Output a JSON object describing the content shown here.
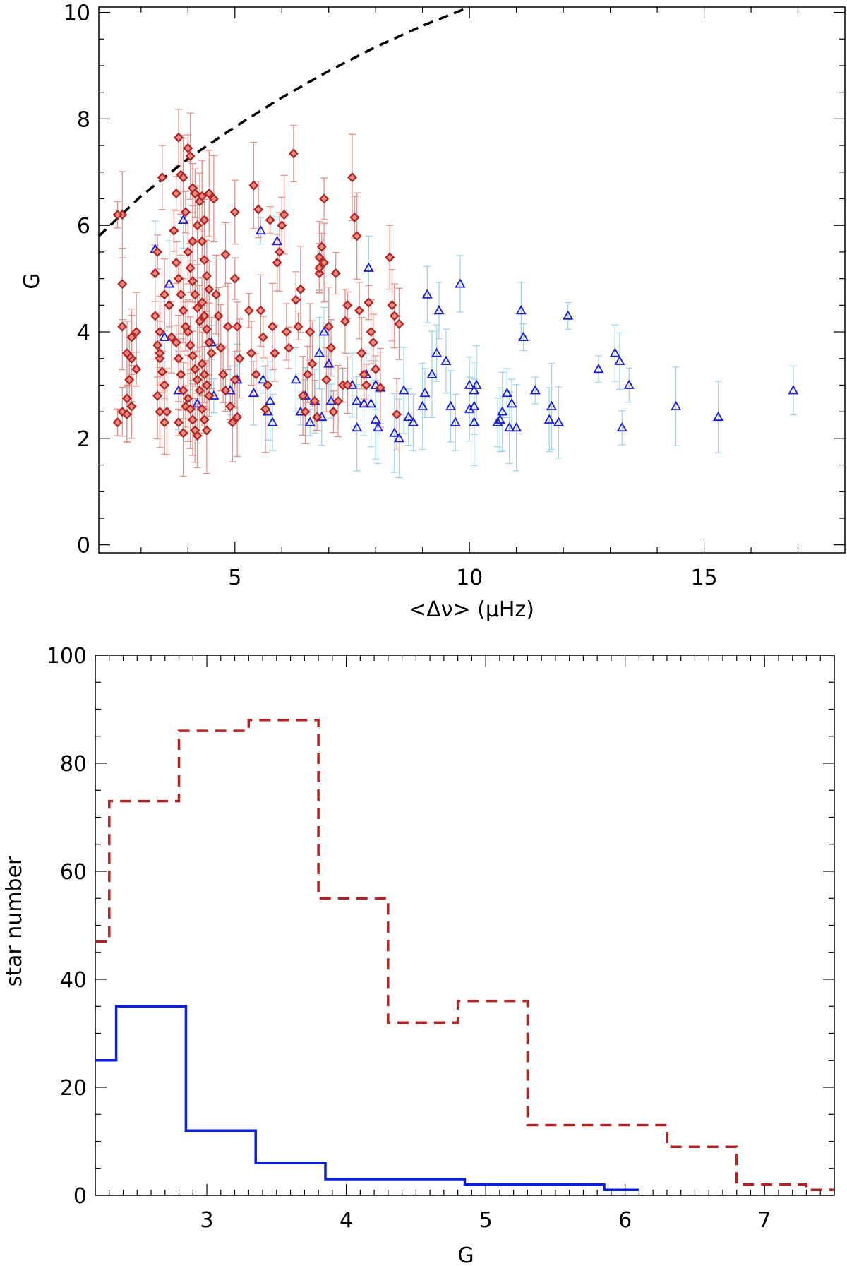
{
  "chart_data": [
    {
      "type": "scatter",
      "xlabel": "<Δν> (μHz)",
      "ylabel": "G",
      "xlim": [
        2.1,
        18.0
      ],
      "ylim": [
        -0.15,
        10.1
      ],
      "xticks": [
        "5",
        "10",
        "15"
      ],
      "yticks": [
        "0",
        "2",
        "4",
        "6",
        "8",
        "10"
      ],
      "colors": {
        "red_marker": "#b22222",
        "red_error": "#e8908a",
        "blue_marker": "#1a1ad6",
        "blue_error": "#9fd6ee",
        "curve": "#000000"
      },
      "curve": {
        "style": "dashed",
        "x": [
          2.1,
          3.0,
          4.0,
          5.0,
          6.0,
          7.0,
          8.0,
          9.0,
          10.0
        ],
        "y": [
          5.8,
          6.55,
          7.25,
          7.85,
          8.4,
          8.9,
          9.35,
          9.75,
          10.1
        ]
      },
      "series": [
        {
          "marker": "diamond",
          "points": [
            [
              2.6,
              6.2
            ],
            [
              2.5,
              6.2
            ],
            [
              2.6,
              4.9
            ],
            [
              2.6,
              4.1
            ],
            [
              2.5,
              2.3
            ],
            [
              2.6,
              2.5
            ],
            [
              2.7,
              2.45
            ],
            [
              2.7,
              2.75
            ],
            [
              2.75,
              3.1
            ],
            [
              2.8,
              3.5
            ],
            [
              2.8,
              3.9
            ],
            [
              2.75,
              3.55
            ],
            [
              2.9,
              4.0
            ],
            [
              2.9,
              3.3
            ],
            [
              2.7,
              3.6
            ],
            [
              2.8,
              2.6
            ],
            [
              3.3,
              5.1
            ],
            [
              3.45,
              6.9
            ],
            [
              3.35,
              5.5
            ],
            [
              3.3,
              4.3
            ],
            [
              3.4,
              4.0
            ],
            [
              3.35,
              3.75
            ],
            [
              3.4,
              3.5
            ],
            [
              3.45,
              3.25
            ],
            [
              3.5,
              3.0
            ],
            [
              3.35,
              2.8
            ],
            [
              3.4,
              2.5
            ],
            [
              3.5,
              2.3
            ],
            [
              3.55,
              2.5
            ],
            [
              3.6,
              4.5
            ],
            [
              3.65,
              3.9
            ],
            [
              3.5,
              4.7
            ],
            [
              3.4,
              3.6
            ],
            [
              3.7,
              5.9
            ],
            [
              3.75,
              6.6
            ],
            [
              3.8,
              7.65
            ],
            [
              3.85,
              6.95
            ],
            [
              3.9,
              6.9
            ],
            [
              3.95,
              6.25
            ],
            [
              3.75,
              5.3
            ],
            [
              3.8,
              5.0
            ],
            [
              3.85,
              4.7
            ],
            [
              3.9,
              4.4
            ],
            [
              3.95,
              4.1
            ],
            [
              3.75,
              3.8
            ],
            [
              3.8,
              3.5
            ],
            [
              3.85,
              3.2
            ],
            [
              3.9,
              2.9
            ],
            [
              3.95,
              2.6
            ],
            [
              3.8,
              2.3
            ],
            [
              3.9,
              2.1
            ],
            [
              4.0,
              7.45
            ],
            [
              4.05,
              7.3
            ],
            [
              4.1,
              6.7
            ],
            [
              4.15,
              6.6
            ],
            [
              4.2,
              6.0
            ],
            [
              4.25,
              6.45
            ],
            [
              4.1,
              5.7
            ],
            [
              4.0,
              5.5
            ],
            [
              4.05,
              5.2
            ],
            [
              4.1,
              4.95
            ],
            [
              4.15,
              4.7
            ],
            [
              4.2,
              4.45
            ],
            [
              4.25,
              4.2
            ],
            [
              4.0,
              4.0
            ],
            [
              4.05,
              3.75
            ],
            [
              4.1,
              3.55
            ],
            [
              4.15,
              3.3
            ],
            [
              4.2,
              3.1
            ],
            [
              4.25,
              2.9
            ],
            [
              4.0,
              2.75
            ],
            [
              4.05,
              2.55
            ],
            [
              4.1,
              2.35
            ],
            [
              4.15,
              2.15
            ],
            [
              4.2,
              2.05
            ],
            [
              4.3,
              6.55
            ],
            [
              4.35,
              6.1
            ],
            [
              4.45,
              6.6
            ],
            [
              4.55,
              6.5
            ],
            [
              4.3,
              5.7
            ],
            [
              4.35,
              5.35
            ],
            [
              4.4,
              5.05
            ],
            [
              4.45,
              4.8
            ],
            [
              4.3,
              4.55
            ],
            [
              4.35,
              4.3
            ],
            [
              4.4,
              4.05
            ],
            [
              4.45,
              3.8
            ],
            [
              4.5,
              3.6
            ],
            [
              4.3,
              3.4
            ],
            [
              4.35,
              3.2
            ],
            [
              4.4,
              3.0
            ],
            [
              4.45,
              2.8
            ],
            [
              4.3,
              2.55
            ],
            [
              4.35,
              2.35
            ],
            [
              4.4,
              2.15
            ],
            [
              4.6,
              4.7
            ],
            [
              4.65,
              4.3
            ],
            [
              4.7,
              3.7
            ],
            [
              4.75,
              3.2
            ],
            [
              4.8,
              2.9
            ],
            [
              4.9,
              2.6
            ],
            [
              4.95,
              2.3
            ],
            [
              4.85,
              4.1
            ],
            [
              4.8,
              5.45
            ],
            [
              5.0,
              6.25
            ],
            [
              5.0,
              5.0
            ],
            [
              5.05,
              4.1
            ],
            [
              5.1,
              3.5
            ],
            [
              5.0,
              3.1
            ],
            [
              5.05,
              2.4
            ],
            [
              5.3,
              4.4
            ],
            [
              5.4,
              6.75
            ],
            [
              5.5,
              6.3
            ],
            [
              5.35,
              3.6
            ],
            [
              5.45,
              3.2
            ],
            [
              5.55,
              4.4
            ],
            [
              5.6,
              3.9
            ],
            [
              5.65,
              2.55
            ],
            [
              5.7,
              3.0
            ],
            [
              5.75,
              6.1
            ],
            [
              5.8,
              4.1
            ],
            [
              5.85,
              3.6
            ],
            [
              5.9,
              5.3
            ],
            [
              5.95,
              5.5
            ],
            [
              6.0,
              6.0
            ],
            [
              6.05,
              6.2
            ],
            [
              6.1,
              4.0
            ],
            [
              6.15,
              3.7
            ],
            [
              6.25,
              7.35
            ],
            [
              6.3,
              4.6
            ],
            [
              6.35,
              4.1
            ],
            [
              6.4,
              4.8
            ],
            [
              6.45,
              2.8
            ],
            [
              6.5,
              2.5
            ],
            [
              6.55,
              3.2
            ],
            [
              6.6,
              4.0
            ],
            [
              6.65,
              3.4
            ],
            [
              6.7,
              2.7
            ],
            [
              6.75,
              2.4
            ],
            [
              6.8,
              5.1
            ],
            [
              6.8,
              5.2
            ],
            [
              6.8,
              5.4
            ],
            [
              6.85,
              5.6
            ],
            [
              6.9,
              5.3
            ],
            [
              6.9,
              6.5
            ],
            [
              6.95,
              3.1
            ],
            [
              7.0,
              4.1
            ],
            [
              7.05,
              3.7
            ],
            [
              7.1,
              2.5
            ],
            [
              7.15,
              5.1
            ],
            [
              7.2,
              2.7
            ],
            [
              7.3,
              3.0
            ],
            [
              7.35,
              4.2
            ],
            [
              7.4,
              4.5
            ],
            [
              7.4,
              3.0
            ],
            [
              7.5,
              6.9
            ],
            [
              7.55,
              6.15
            ],
            [
              7.6,
              5.8
            ],
            [
              7.65,
              4.4
            ],
            [
              7.7,
              3.6
            ],
            [
              7.75,
              3.2
            ],
            [
              7.8,
              3.0
            ],
            [
              7.85,
              4.55
            ],
            [
              7.9,
              4.0
            ],
            [
              7.95,
              3.8
            ],
            [
              8.0,
              3.3
            ],
            [
              8.1,
              2.95
            ],
            [
              8.3,
              5.4
            ],
            [
              8.35,
              4.5
            ],
            [
              8.4,
              4.3
            ],
            [
              8.45,
              2.45
            ],
            [
              8.5,
              4.15
            ]
          ]
        },
        {
          "marker": "triangle",
          "points": [
            [
              3.3,
              5.55
            ],
            [
              3.5,
              3.9
            ],
            [
              3.6,
              4.9
            ],
            [
              3.8,
              2.9
            ],
            [
              3.9,
              6.1
            ],
            [
              4.2,
              2.65
            ],
            [
              4.5,
              3.8
            ],
            [
              4.55,
              2.8
            ],
            [
              4.9,
              2.9
            ],
            [
              5.05,
              3.1
            ],
            [
              5.4,
              2.85
            ],
            [
              5.55,
              5.9
            ],
            [
              5.6,
              3.1
            ],
            [
              5.7,
              2.5
            ],
            [
              5.75,
              2.7
            ],
            [
              5.8,
              2.3
            ],
            [
              5.9,
              5.7
            ],
            [
              6.3,
              3.1
            ],
            [
              6.4,
              2.5
            ],
            [
              6.5,
              2.8
            ],
            [
              6.6,
              2.3
            ],
            [
              6.7,
              2.7
            ],
            [
              6.8,
              3.6
            ],
            [
              6.85,
              2.4
            ],
            [
              6.9,
              4.0
            ],
            [
              7.0,
              3.4
            ],
            [
              7.05,
              2.7
            ],
            [
              7.5,
              3.0
            ],
            [
              7.6,
              2.7
            ],
            [
              7.6,
              2.2
            ],
            [
              7.75,
              2.65
            ],
            [
              7.8,
              3.2
            ],
            [
              7.85,
              5.2
            ],
            [
              7.9,
              2.65
            ],
            [
              8.0,
              3.0
            ],
            [
              8.0,
              2.35
            ],
            [
              8.05,
              2.2
            ],
            [
              8.1,
              2.95
            ],
            [
              8.4,
              2.1
            ],
            [
              8.5,
              2.0
            ],
            [
              8.6,
              2.9
            ],
            [
              8.7,
              2.4
            ],
            [
              8.8,
              2.3
            ],
            [
              9.0,
              2.6
            ],
            [
              9.05,
              2.85
            ],
            [
              9.1,
              4.7
            ],
            [
              9.2,
              3.2
            ],
            [
              9.3,
              3.6
            ],
            [
              9.35,
              4.4
            ],
            [
              9.5,
              3.45
            ],
            [
              9.6,
              2.6
            ],
            [
              9.7,
              2.3
            ],
            [
              9.8,
              4.9
            ],
            [
              10.0,
              3.0
            ],
            [
              10.1,
              2.9
            ],
            [
              10.1,
              2.3
            ],
            [
              10.15,
              3.0
            ],
            [
              10.1,
              2.6
            ],
            [
              10.0,
              2.55
            ],
            [
              10.6,
              2.3
            ],
            [
              10.65,
              2.35
            ],
            [
              10.7,
              2.5
            ],
            [
              10.8,
              2.85
            ],
            [
              10.85,
              2.2
            ],
            [
              10.9,
              2.65
            ],
            [
              11.0,
              2.2
            ],
            [
              11.1,
              4.4
            ],
            [
              11.15,
              3.9
            ],
            [
              11.4,
              2.9
            ],
            [
              11.7,
              2.35
            ],
            [
              11.75,
              2.6
            ],
            [
              11.9,
              2.3
            ],
            [
              12.1,
              4.3
            ],
            [
              12.75,
              3.3
            ],
            [
              13.1,
              3.6
            ],
            [
              13.2,
              3.45
            ],
            [
              13.25,
              2.2
            ],
            [
              13.4,
              3.0
            ],
            [
              14.4,
              2.6
            ],
            [
              15.3,
              2.4
            ],
            [
              16.9,
              2.9
            ]
          ]
        }
      ]
    },
    {
      "type": "line",
      "style": "histogram-steps",
      "xlabel": "G",
      "ylabel": "star number",
      "xlim": [
        2.2,
        7.5
      ],
      "ylim": [
        0,
        100
      ],
      "xticks": [
        "3",
        "4",
        "5",
        "6",
        "7"
      ],
      "yticks": [
        "0",
        "20",
        "40",
        "60",
        "80",
        "100"
      ],
      "series": [
        {
          "color": "#b22222",
          "dash": "dashed",
          "edges": [
            2.2,
            2.3,
            2.8,
            3.3,
            3.8,
            4.3,
            4.8,
            5.3,
            5.8,
            6.3,
            6.8,
            7.3,
            7.5
          ],
          "values": [
            47,
            73,
            86,
            88,
            55,
            32,
            36,
            13,
            13,
            9,
            2,
            1
          ]
        },
        {
          "color": "#0a1ee0",
          "dash": "solid",
          "edges": [
            2.2,
            2.35,
            2.85,
            3.35,
            3.85,
            4.85,
            5.85,
            6.1
          ],
          "values": [
            25,
            35,
            12,
            6,
            3,
            2,
            1
          ]
        }
      ]
    }
  ]
}
